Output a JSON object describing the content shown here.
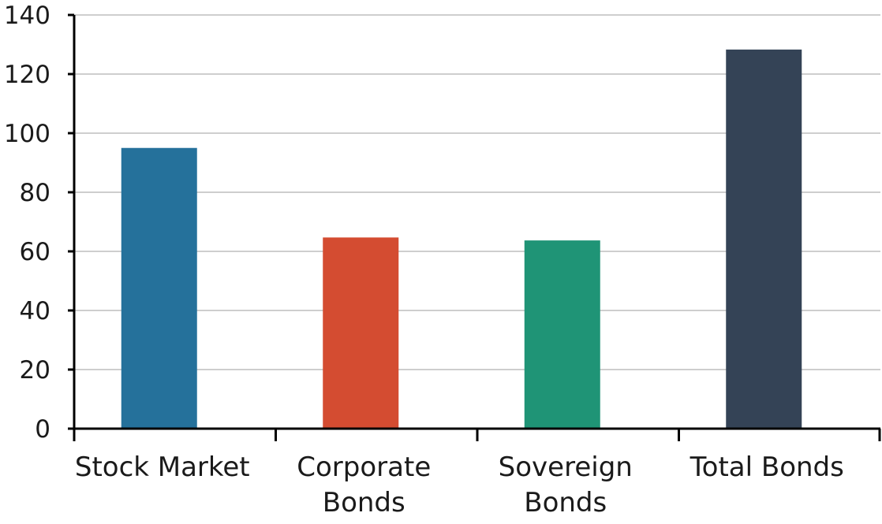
{
  "chart_data": {
    "type": "bar",
    "title": "",
    "xlabel": "",
    "ylabel": "",
    "ylim": [
      0,
      140
    ],
    "yticks": [
      0,
      20,
      40,
      60,
      80,
      100,
      120,
      140
    ],
    "grid": true,
    "categories": [
      [
        "Stock Market"
      ],
      [
        "Corporate",
        "Bonds"
      ],
      [
        "Sovereign",
        "Bonds"
      ],
      [
        "Total Bonds"
      ]
    ],
    "values": [
      95,
      64.7,
      63.7,
      128.3
    ],
    "colors": [
      "#25719b",
      "#d44c31",
      "#1f9476",
      "#344356"
    ]
  }
}
